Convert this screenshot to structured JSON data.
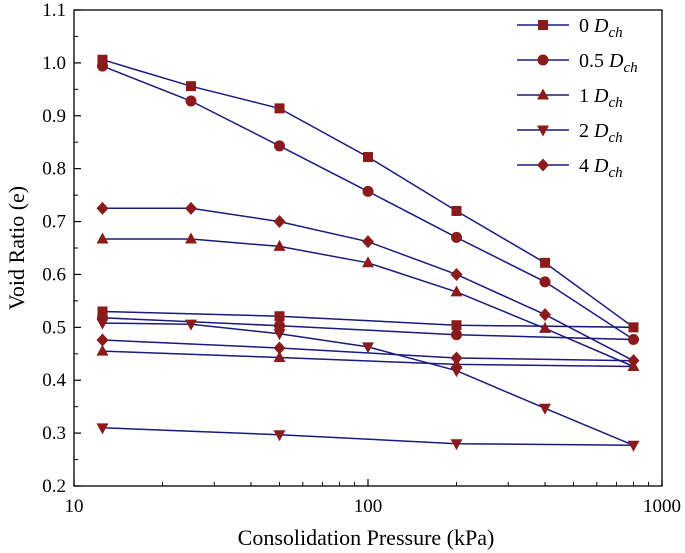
{
  "chart_data": {
    "type": "line",
    "title": "",
    "xlabel": "Consolidation Pressure (kPa)",
    "ylabel": "Void Ratio (e)",
    "xscale": "log",
    "xlim": [
      10,
      1000
    ],
    "ylim": [
      0.2,
      1.1
    ],
    "x_ticks": [
      10,
      100,
      1000
    ],
    "x_tick_labels": [
      "10",
      "100",
      "1000"
    ],
    "y_ticks": [
      0.2,
      0.3,
      0.4,
      0.5,
      0.6,
      0.7,
      0.8,
      0.9,
      1.0,
      1.1
    ],
    "y_tick_labels": [
      "0.2",
      "0.3",
      "0.4",
      "0.5",
      "0.6",
      "0.7",
      "0.8",
      "0.9",
      "1.0",
      "1.1"
    ],
    "grid": false,
    "legend_position": "top-right",
    "line_color": "#1a1a80",
    "marker_color": "#8b1a1a",
    "series": [
      {
        "name": "0 D_ch",
        "label_num": "0",
        "label_d": "D",
        "label_sub": "ch",
        "marker": "square",
        "x": [
          12.5,
          25,
          50,
          100,
          200,
          400,
          800,
          200,
          50,
          12.5
        ],
        "y": [
          1.006,
          0.956,
          0.914,
          0.822,
          0.72,
          0.622,
          0.5,
          0.504,
          0.521,
          0.53
        ]
      },
      {
        "name": "0.5 D_ch",
        "label_num": "0.5",
        "label_d": "D",
        "label_sub": "ch",
        "marker": "circle",
        "x": [
          12.5,
          25,
          50,
          100,
          200,
          400,
          800,
          200,
          50,
          12.5
        ],
        "y": [
          0.994,
          0.928,
          0.843,
          0.757,
          0.67,
          0.586,
          0.477,
          0.486,
          0.503,
          0.518
        ]
      },
      {
        "name": "1 D_ch",
        "label_num": "1",
        "label_d": "D",
        "label_sub": "ch",
        "marker": "triangle-up",
        "x": [
          12.5,
          25,
          50,
          100,
          200,
          400,
          800,
          200,
          50,
          12.5
        ],
        "y": [
          0.667,
          0.667,
          0.653,
          0.622,
          0.567,
          0.498,
          0.426,
          0.43,
          0.443,
          0.455
        ]
      },
      {
        "name": "2 D_ch",
        "label_num": "2",
        "label_d": "D",
        "label_sub": "ch",
        "marker": "triangle-down",
        "x": [
          12.5,
          25,
          50,
          100,
          200,
          400,
          800,
          200,
          50,
          12.5
        ],
        "y": [
          0.508,
          0.506,
          0.488,
          0.463,
          0.418,
          0.347,
          0.277,
          0.28,
          0.297,
          0.31
        ]
      },
      {
        "name": "4 D_ch",
        "label_num": "4",
        "label_d": "D",
        "label_sub": "ch",
        "marker": "diamond",
        "x": [
          12.5,
          25,
          50,
          100,
          200,
          400,
          800,
          200,
          50,
          12.5
        ],
        "y": [
          0.725,
          0.725,
          0.7,
          0.662,
          0.6,
          0.524,
          0.437,
          0.442,
          0.461,
          0.476
        ]
      }
    ]
  }
}
